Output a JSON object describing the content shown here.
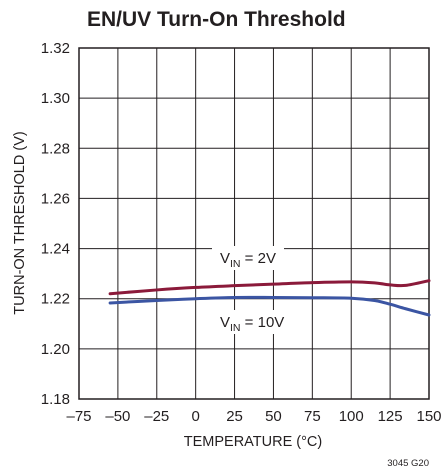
{
  "chart_data": {
    "type": "line",
    "title": "EN/UV Turn-On Threshold",
    "xlabel": "TEMPERATURE (°C)",
    "ylabel": "TURN-ON THRESHOLD (V)",
    "xlim": [
      -75,
      150
    ],
    "ylim": [
      1.18,
      1.32
    ],
    "x_ticks": [
      "–75",
      "–50",
      "–25",
      "0",
      "25",
      "50",
      "75",
      "100",
      "125",
      "150"
    ],
    "y_ticks": [
      "1.18",
      "1.20",
      "1.22",
      "1.24",
      "1.26",
      "1.28",
      "1.30",
      "1.32"
    ],
    "grid": true,
    "series": [
      {
        "label_main": "V",
        "label_sub": "IN",
        "label_rest": " = 2V",
        "color": "#8b1a3a",
        "x": [
          -55,
          -25,
          0,
          25,
          50,
          75,
          100,
          115,
          125,
          135,
          150
        ],
        "y": [
          1.222,
          1.2235,
          1.2245,
          1.2252,
          1.2258,
          1.2264,
          1.2267,
          1.2263,
          1.2255,
          1.2253,
          1.2272
        ]
      },
      {
        "label_main": "V",
        "label_sub": "IN",
        "label_rest": " = 10V",
        "color": "#3b55a3",
        "x": [
          -55,
          -25,
          0,
          25,
          50,
          75,
          100,
          115,
          125,
          135,
          150
        ],
        "y": [
          1.2183,
          1.2193,
          1.22,
          1.2205,
          1.2205,
          1.2204,
          1.2202,
          1.2193,
          1.2178,
          1.216,
          1.2135
        ]
      }
    ],
    "figure_code": "3045 G20"
  }
}
